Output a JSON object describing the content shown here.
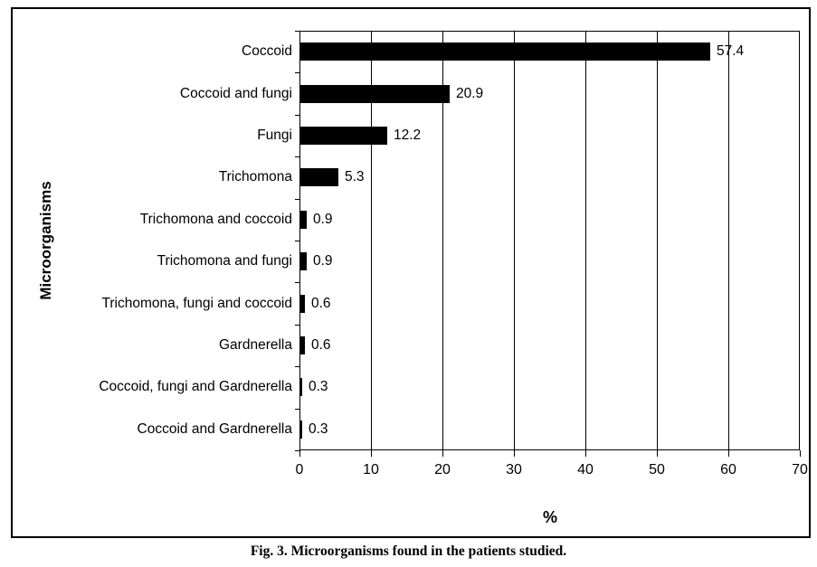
{
  "figure": {
    "caption": "Fig. 3. Microorganisms found in the patients studied."
  },
  "chart_data": {
    "type": "bar",
    "orientation": "horizontal",
    "title": "",
    "xlabel": "%",
    "ylabel": "Microorganisms",
    "categories": [
      "Coccoid",
      "Coccoid and fungi",
      "Fungi",
      "Trichomona",
      "Trichomona and coccoid",
      "Trichomona and fungi",
      "Trichomona, fungi and coccoid",
      "Gardnerella",
      "Coccoid, fungi and Gardnerella",
      "Coccoid and Gardnerella"
    ],
    "values": [
      57.4,
      20.9,
      12.2,
      5.3,
      0.9,
      0.9,
      0.6,
      0.6,
      0.3,
      0.3
    ],
    "value_labels": [
      "57.4",
      "20.9",
      "12.2",
      "5.3",
      "0.9",
      "0.9",
      "0.6",
      "0.6",
      "0.3",
      "0.3"
    ],
    "xlim": [
      0,
      70
    ],
    "x_ticks": [
      0,
      10,
      20,
      30,
      40,
      50,
      60,
      70
    ],
    "grid": true,
    "legend": "none",
    "bar_color": "#000000",
    "background_color": "#ffffff"
  }
}
